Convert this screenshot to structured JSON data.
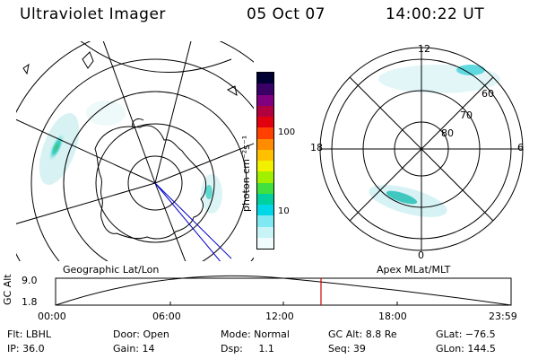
{
  "header": {
    "title": "Ultraviolet Imager",
    "date": "05 Oct 07",
    "time": "14:00:22 UT"
  },
  "left_panel": {
    "caption": "Geographic Lat/Lon"
  },
  "right_panel": {
    "caption": "Apex MLat/MLT",
    "lat_labels": [
      "60",
      "70",
      "80"
    ],
    "mlt_labels": {
      "top": "12",
      "left": "18",
      "right": "6",
      "bottom": "0"
    }
  },
  "colorbar": {
    "unit_label": "photon cm⁻²s⁻¹",
    "ticks": [
      "100",
      "10"
    ],
    "colors": [
      "#000033",
      "#3a0066",
      "#800080",
      "#b00040",
      "#e00010",
      "#ff4000",
      "#ff8c00",
      "#ffc000",
      "#f0f000",
      "#a0f000",
      "#40e040",
      "#00d0a0",
      "#00d8e8",
      "#80e8f0",
      "#c8f4f8",
      "#f0fcfc"
    ]
  },
  "timeline": {
    "ylabel": "GC Alt",
    "yticks": [
      "9.0",
      "1.8"
    ],
    "xticks": [
      "00:00",
      "06:00",
      "12:00",
      "18:00",
      "23:59"
    ],
    "current_time_color": "#cc0000"
  },
  "info": {
    "filter": "Flt: LBHL",
    "ip": "IP: 36.0",
    "door": "Door: Open",
    "gain": "Gain: 14",
    "mode": "Mode: Normal",
    "dsp": "Dsp:     1.1",
    "gc_alt": "GC Alt: 8.8 Re",
    "seq": "Seq: 39",
    "glat": "GLat: −76.5",
    "glon": "GLon: 144.5"
  }
}
